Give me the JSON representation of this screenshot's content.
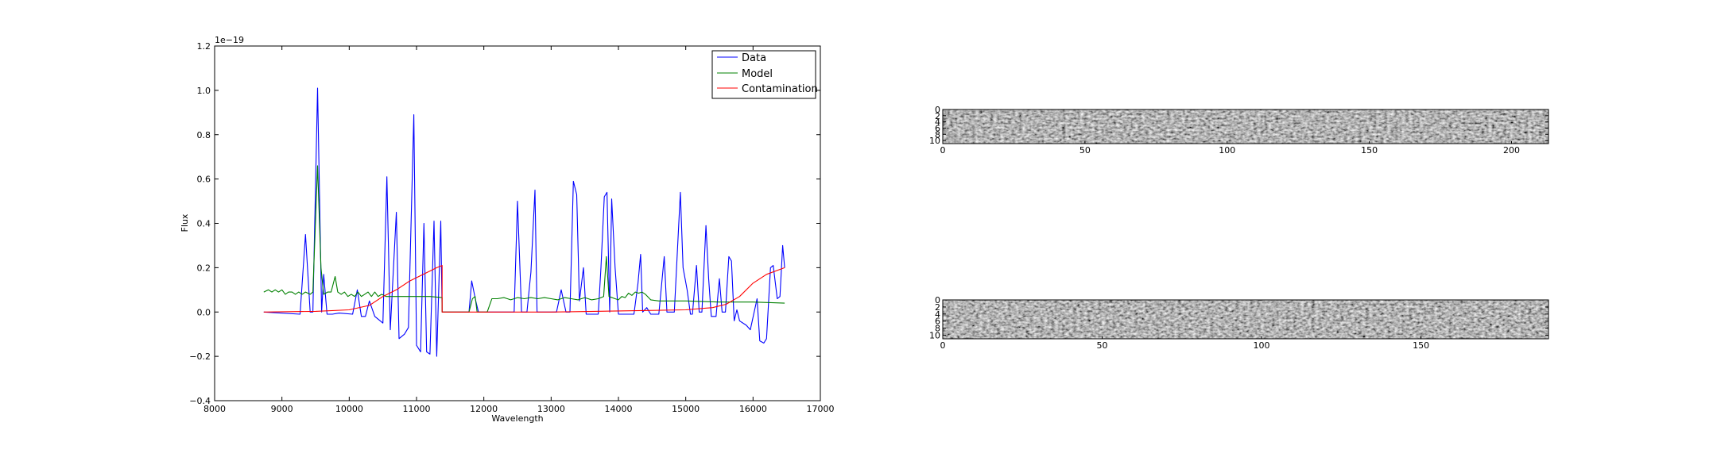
{
  "chart_data": [
    {
      "type": "line",
      "xlabel": "Wavelength",
      "ylabel": "Flux",
      "offset_text": "1e−19",
      "xlim": [
        8000,
        17000
      ],
      "ylim": [
        -0.4,
        1.2
      ],
      "xticks": [
        8000,
        9000,
        10000,
        11000,
        12000,
        13000,
        14000,
        15000,
        16000,
        17000
      ],
      "yticks": [
        -0.4,
        -0.2,
        0.0,
        0.2,
        0.4,
        0.6,
        0.8,
        1.0,
        1.2
      ],
      "xtick_labels": [
        "8000",
        "9000",
        "10000",
        "11000",
        "12000",
        "13000",
        "14000",
        "15000",
        "16000",
        "17000"
      ],
      "ytick_labels": [
        "−0.4",
        "−0.2",
        "0.0",
        "0.2",
        "0.4",
        "0.6",
        "0.8",
        "1.0",
        "1.2"
      ],
      "grid": false,
      "legend_position": "top-right",
      "series": [
        {
          "name": "Data",
          "color": "#0000ff",
          "points": [
            [
              8730,
              0.0
            ],
            [
              9270,
              -0.01
            ],
            [
              9350,
              0.35
            ],
            [
              9420,
              0.0
            ],
            [
              9460,
              0.0
            ],
            [
              9530,
              1.01
            ],
            [
              9590,
              0.0
            ],
            [
              9620,
              0.17
            ],
            [
              9670,
              -0.01
            ],
            [
              9750,
              -0.01
            ],
            [
              9850,
              -0.005
            ],
            [
              10050,
              -0.01
            ],
            [
              10120,
              0.1
            ],
            [
              10180,
              -0.02
            ],
            [
              10240,
              -0.02
            ],
            [
              10300,
              0.05
            ],
            [
              10380,
              -0.02
            ],
            [
              10500,
              -0.05
            ],
            [
              10560,
              0.61
            ],
            [
              10610,
              -0.08
            ],
            [
              10700,
              0.45
            ],
            [
              10740,
              -0.12
            ],
            [
              10820,
              -0.1
            ],
            [
              10880,
              -0.07
            ],
            [
              10960,
              0.89
            ],
            [
              11000,
              -0.15
            ],
            [
              11060,
              -0.18
            ],
            [
              11110,
              0.4
            ],
            [
              11150,
              -0.18
            ],
            [
              11200,
              -0.19
            ],
            [
              11260,
              0.41
            ],
            [
              11300,
              -0.2
            ],
            [
              11360,
              0.41
            ],
            [
              11380,
              0.0
            ],
            [
              11780,
              0.0
            ],
            [
              11820,
              0.14
            ],
            [
              11880,
              0.05
            ],
            [
              11920,
              0.0
            ],
            [
              12450,
              0.0
            ],
            [
              12500,
              0.5
            ],
            [
              12560,
              0.0
            ],
            [
              12640,
              0.0
            ],
            [
              12700,
              0.18
            ],
            [
              12760,
              0.55
            ],
            [
              12790,
              0.0
            ],
            [
              13080,
              0.0
            ],
            [
              13150,
              0.1
            ],
            [
              13220,
              0.0
            ],
            [
              13280,
              0.0
            ],
            [
              13330,
              0.59
            ],
            [
              13380,
              0.53
            ],
            [
              13420,
              0.05
            ],
            [
              13480,
              0.2
            ],
            [
              13520,
              -0.01
            ],
            [
              13700,
              -0.01
            ],
            [
              13740,
              0.2
            ],
            [
              13790,
              0.52
            ],
            [
              13830,
              0.54
            ],
            [
              13870,
              0.0
            ],
            [
              13900,
              0.51
            ],
            [
              13950,
              0.2
            ],
            [
              14000,
              -0.01
            ],
            [
              14230,
              -0.01
            ],
            [
              14290,
              0.13
            ],
            [
              14330,
              0.26
            ],
            [
              14360,
              0.0
            ],
            [
              14420,
              0.02
            ],
            [
              14480,
              -0.01
            ],
            [
              14600,
              -0.01
            ],
            [
              14680,
              0.25
            ],
            [
              14720,
              0.0
            ],
            [
              14830,
              0.0
            ],
            [
              14920,
              0.54
            ],
            [
              14960,
              0.2
            ],
            [
              15020,
              0.1
            ],
            [
              15070,
              -0.01
            ],
            [
              15100,
              -0.01
            ],
            [
              15160,
              0.21
            ],
            [
              15200,
              0.0
            ],
            [
              15240,
              0.0
            ],
            [
              15300,
              0.39
            ],
            [
              15340,
              0.15
            ],
            [
              15380,
              -0.02
            ],
            [
              15450,
              -0.02
            ],
            [
              15500,
              0.15
            ],
            [
              15540,
              0.0
            ],
            [
              15590,
              0.0
            ],
            [
              15640,
              0.25
            ],
            [
              15680,
              0.23
            ],
            [
              15720,
              -0.04
            ],
            [
              15760,
              0.01
            ],
            [
              15800,
              -0.04
            ],
            [
              15900,
              -0.06
            ],
            [
              15960,
              -0.08
            ],
            [
              16060,
              0.06
            ],
            [
              16100,
              -0.13
            ],
            [
              16160,
              -0.14
            ],
            [
              16200,
              -0.12
            ],
            [
              16260,
              0.2
            ],
            [
              16300,
              0.21
            ],
            [
              16360,
              0.06
            ],
            [
              16400,
              0.07
            ],
            [
              16440,
              0.3
            ],
            [
              16470,
              0.2
            ]
          ]
        },
        {
          "name": "Model",
          "color": "#008000",
          "points": [
            [
              8730,
              0.09
            ],
            [
              8800,
              0.1
            ],
            [
              8850,
              0.09
            ],
            [
              8900,
              0.1
            ],
            [
              8950,
              0.09
            ],
            [
              9000,
              0.1
            ],
            [
              9050,
              0.08
            ],
            [
              9100,
              0.09
            ],
            [
              9150,
              0.09
            ],
            [
              9200,
              0.08
            ],
            [
              9250,
              0.09
            ],
            [
              9300,
              0.08
            ],
            [
              9350,
              0.09
            ],
            [
              9420,
              0.08
            ],
            [
              9460,
              0.09
            ],
            [
              9530,
              0.66
            ],
            [
              9580,
              0.2
            ],
            [
              9620,
              0.08
            ],
            [
              9680,
              0.09
            ],
            [
              9730,
              0.09
            ],
            [
              9790,
              0.16
            ],
            [
              9830,
              0.09
            ],
            [
              9880,
              0.08
            ],
            [
              9930,
              0.09
            ],
            [
              9980,
              0.07
            ],
            [
              10030,
              0.08
            ],
            [
              10080,
              0.07
            ],
            [
              10130,
              0.09
            ],
            [
              10180,
              0.07
            ],
            [
              10230,
              0.08
            ],
            [
              10280,
              0.09
            ],
            [
              10330,
              0.07
            ],
            [
              10380,
              0.09
            ],
            [
              10430,
              0.07
            ],
            [
              10480,
              0.08
            ],
            [
              10550,
              0.07
            ],
            [
              10700,
              0.07
            ],
            [
              11000,
              0.07
            ],
            [
              11200,
              0.07
            ],
            [
              11380,
              0.065
            ],
            [
              11380,
              0.0
            ],
            [
              11780,
              0.0
            ],
            [
              11830,
              0.06
            ],
            [
              11870,
              0.07
            ],
            [
              11900,
              0.0
            ],
            [
              12050,
              0.0
            ],
            [
              12120,
              0.06
            ],
            [
              12200,
              0.06
            ],
            [
              12300,
              0.065
            ],
            [
              12400,
              0.055
            ],
            [
              12500,
              0.065
            ],
            [
              12600,
              0.06
            ],
            [
              12700,
              0.065
            ],
            [
              12800,
              0.06
            ],
            [
              12900,
              0.065
            ],
            [
              13000,
              0.06
            ],
            [
              13100,
              0.055
            ],
            [
              13200,
              0.065
            ],
            [
              13300,
              0.06
            ],
            [
              13400,
              0.055
            ],
            [
              13500,
              0.065
            ],
            [
              13600,
              0.055
            ],
            [
              13700,
              0.06
            ],
            [
              13780,
              0.07
            ],
            [
              13820,
              0.25
            ],
            [
              13860,
              0.07
            ],
            [
              13950,
              0.06
            ],
            [
              14000,
              0.055
            ],
            [
              14050,
              0.07
            ],
            [
              14100,
              0.065
            ],
            [
              14150,
              0.085
            ],
            [
              14200,
              0.075
            ],
            [
              14250,
              0.09
            ],
            [
              14300,
              0.085
            ],
            [
              14350,
              0.09
            ],
            [
              14400,
              0.08
            ],
            [
              14480,
              0.055
            ],
            [
              14600,
              0.05
            ],
            [
              15000,
              0.05
            ],
            [
              15500,
              0.045
            ],
            [
              16000,
              0.045
            ],
            [
              16470,
              0.04
            ]
          ]
        },
        {
          "name": "Contamination",
          "color": "#ff0000",
          "points": [
            [
              8730,
              0.0
            ],
            [
              9500,
              0.003
            ],
            [
              10000,
              0.01
            ],
            [
              10300,
              0.03
            ],
            [
              10500,
              0.07
            ],
            [
              10700,
              0.1
            ],
            [
              10900,
              0.14
            ],
            [
              11100,
              0.17
            ],
            [
              11300,
              0.2
            ],
            [
              11380,
              0.21
            ],
            [
              11380,
              0.0
            ],
            [
              13000,
              0.0
            ],
            [
              14000,
              0.005
            ],
            [
              15000,
              0.01
            ],
            [
              15400,
              0.02
            ],
            [
              15600,
              0.035
            ],
            [
              15800,
              0.07
            ],
            [
              16000,
              0.13
            ],
            [
              16200,
              0.17
            ],
            [
              16470,
              0.2
            ]
          ]
        }
      ]
    },
    {
      "type": "heatmap",
      "xlim": [
        0,
        213
      ],
      "ylim": [
        0,
        11
      ],
      "xticks": [
        0,
        50,
        100,
        150,
        200
      ],
      "yticks": [
        0,
        2,
        4,
        6,
        8,
        10
      ],
      "xtick_labels": [
        "0",
        "50",
        "100",
        "150",
        "200"
      ],
      "ytick_labels": [
        "0",
        "2",
        "4",
        "6",
        "8",
        "10"
      ],
      "colormap": "gray"
    },
    {
      "type": "heatmap",
      "xlim": [
        0,
        190
      ],
      "ylim": [
        0,
        11
      ],
      "xticks": [
        0,
        50,
        100,
        150
      ],
      "yticks": [
        0,
        2,
        4,
        6,
        8,
        10
      ],
      "xtick_labels": [
        "0",
        "50",
        "100",
        "150"
      ],
      "ytick_labels": [
        "0",
        "2",
        "4",
        "6",
        "8",
        "10"
      ],
      "colormap": "gray"
    }
  ]
}
